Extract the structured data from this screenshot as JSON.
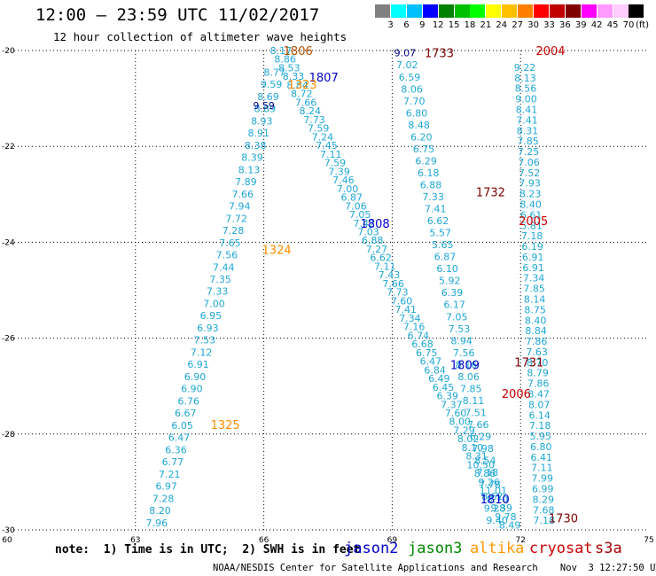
{
  "header": {
    "title": "12:00 – 23:59 UTC 11/02/2017",
    "subtitle": "12 hour collection of altimeter wave heights"
  },
  "colorbar": {
    "colors": [
      "#808080",
      "#00ffff",
      "#00bfff",
      "#0000ff",
      "#008000",
      "#00c000",
      "#00ff00",
      "#ffff00",
      "#ffc000",
      "#ff8000",
      "#ff0000",
      "#c00000",
      "#800000",
      "#ff00ff",
      "#ff99ff",
      "#ffccff",
      "#000000"
    ],
    "labels": [
      "3",
      "6",
      "9",
      "12",
      "15",
      "18",
      "21",
      "24",
      "27",
      "30",
      "33",
      "36",
      "39",
      "42",
      "45",
      "70"
    ],
    "unit": "(ft)"
  },
  "axes": {
    "x_ticks": [
      "60",
      "63",
      "66",
      "69",
      "72",
      "75"
    ],
    "y_ticks": [
      "-20",
      "-22",
      "-24",
      "-26",
      "-28",
      "-30"
    ]
  },
  "passes": [
    {
      "name": "jason2",
      "time": "1806",
      "color": "#b05000",
      "at": [
        66.8,
        -20.0
      ]
    },
    {
      "name": "jason2",
      "time": "1807",
      "color": "#0000cc",
      "at": [
        67.4,
        -20.55
      ]
    },
    {
      "name": "altika",
      "time": "1323",
      "color": "#ff8c00",
      "at": [
        66.9,
        -20.7
      ]
    },
    {
      "name": "altika",
      "time": "1324",
      "color": "#ff8c00",
      "at": [
        66.3,
        -24.15
      ]
    },
    {
      "name": "altika",
      "time": "1325",
      "color": "#ff8c00",
      "at": [
        65.1,
        -27.8
      ]
    },
    {
      "name": "jason2",
      "time": "1808",
      "color": "#0000cc",
      "at": [
        68.6,
        -23.6
      ]
    },
    {
      "name": "jason2",
      "time": "1809",
      "color": "#0000cc",
      "at": [
        70.7,
        -26.55
      ]
    },
    {
      "name": "jason2",
      "time": "1810",
      "color": "#0000cc",
      "at": [
        71.4,
        -29.35
      ]
    },
    {
      "name": "cryosat",
      "time": "1733",
      "color": "#800000",
      "at": [
        70.1,
        -20.05
      ]
    },
    {
      "name": "cryosat",
      "time": "1732",
      "color": "#800000",
      "at": [
        71.3,
        -22.95
      ]
    },
    {
      "name": "cryosat",
      "time": "1731",
      "color": "#800000",
      "at": [
        72.2,
        -26.5
      ]
    },
    {
      "name": "cryosat",
      "time": "1730",
      "color": "#800000",
      "at": [
        73.0,
        -29.75
      ]
    },
    {
      "name": "s3a",
      "time": "2004",
      "color": "#cc0000",
      "at": [
        72.7,
        -20.0
      ]
    },
    {
      "name": "s3a",
      "time": "2005",
      "color": "#cc0000",
      "at": [
        72.3,
        -23.55
      ]
    },
    {
      "name": "s3a",
      "time": "2006",
      "color": "#cc0000",
      "at": [
        71.9,
        -27.15
      ]
    }
  ],
  "tracks": [
    {
      "id": "altika_1324",
      "color": "#1ea7d6",
      "start": [
        66.25,
        -20.45
      ],
      "end": [
        63.5,
        -29.85
      ],
      "first_color": "#1ea7d6",
      "values": [
        "8.77",
        "9.59",
        "8.69",
        "8.89",
        "8.93",
        "8.91",
        "8.38",
        "8.39",
        "8.13",
        "7.89",
        "7.66",
        "7.94",
        "7.72",
        "7.28",
        "7.65",
        "7.56",
        "7.44",
        "7.35",
        "7.33",
        "7.00",
        "6.95",
        "6.93",
        "7.53",
        "7.12",
        "6.91",
        "6.90",
        "6.90",
        "6.76",
        "6.67",
        "6.05",
        "6.47",
        "6.36",
        "6.77",
        "7.21",
        "6.97",
        "7.28",
        "8.20",
        "7.96"
      ]
    },
    {
      "id": "jason2_1807",
      "color": "#1ea7d6",
      "start": [
        66.4,
        -20.0
      ],
      "end": [
        71.75,
        -29.9
      ],
      "values": [
        "8.17",
        "8.86",
        "8.53",
        "8.33",
        "8.84",
        "8.72",
        "7.66",
        "8.24",
        "7.73",
        "7.59",
        "7.24",
        "7.45",
        "7.11",
        "7.59",
        "7.39",
        "7.46",
        "7.00",
        "6.87",
        "7.06",
        "7.05",
        "7.42",
        "7.03",
        "6.88",
        "7.27",
        "6.62",
        "7.11",
        "7.43",
        "7.66",
        "7.73",
        "7.60",
        "7.41",
        "7.34",
        "7.16",
        "6.74",
        "6.68",
        "6.75",
        "6.47",
        "6.84",
        "6.49",
        "6.45",
        "6.39",
        "7.37",
        "7.60",
        "8.00",
        "7.29",
        "8.02",
        "8.10",
        "8.31",
        "10.50",
        "8.86",
        "9.26",
        "11.01",
        "8.70",
        "9.39",
        "9.78",
        "8.49"
      ]
    },
    {
      "id": "cryosat_1731",
      "color": "#1ea7d6",
      "start": [
        69.35,
        -20.3
      ],
      "end": [
        71.45,
        -29.8
      ],
      "values": [
        "7.02",
        "6.59",
        "8.06",
        "7.70",
        "6.80",
        "8.48",
        "6.20",
        "6.75",
        "6.29",
        "6.18",
        "6.88",
        "7.33",
        "7.41",
        "6.62",
        "5.57",
        "5.65",
        "6.87",
        "6.10",
        "5.92",
        "6.39",
        "6.17",
        "7.05",
        "7.53",
        "8.94",
        "7.56",
        "8.16",
        "8.06",
        "7.85",
        "8.11",
        "7.51",
        "7.66",
        "6.29",
        "7.98",
        "8.54",
        "7.18",
        "7.78",
        "8.62",
        "9.28",
        "9.40"
      ]
    },
    {
      "id": "s3a_2005",
      "color": "#1ea7d6",
      "start": [
        72.1,
        -20.35
      ],
      "end": [
        72.55,
        -29.8
      ],
      "values": [
        "9.22",
        "8.13",
        "8.56",
        "9.00",
        "8.41",
        "7.41",
        "8.31",
        "7.85",
        "7.25",
        "7.06",
        "7.52",
        "7.93",
        "8.23",
        "8.40",
        "6.61",
        "5.81",
        "7.18",
        "6.19",
        "6.91",
        "6.91",
        "7.34",
        "7.85",
        "8.14",
        "8.75",
        "8.40",
        "8.84",
        "7.86",
        "7.63",
        "8.70",
        "8.79",
        "7.86",
        "8.47",
        "8.07",
        "6.14",
        "7.18",
        "5.95",
        "6.80",
        "6.41",
        "7.11",
        "7.99",
        "6.99",
        "8.29",
        "7.68",
        "7.18"
      ]
    }
  ],
  "dark_values": [
    {
      "text": "9.07",
      "color": "#00008b",
      "at": [
        69.3,
        -20.05
      ]
    },
    {
      "text": "9.59",
      "color": "#00008b",
      "at": [
        66.0,
        -21.15
      ]
    }
  ],
  "note": "note:  1) Time is in UTC;  2) SWH is in feet",
  "legend": [
    {
      "text": "jason2",
      "color": "#0000cc"
    },
    {
      "text": "jason3",
      "color": "#008800"
    },
    {
      "text": "altika",
      "color": "#ff9900"
    },
    {
      "text": "cryosat",
      "color": "#cc0000"
    },
    {
      "text": "s3a",
      "color": "#aa0000"
    }
  ],
  "footer": "NOAA/NESDIS Center for Satellite Applications and Research    Nov  3 12:27:50 UTC 2017",
  "map_extent": {
    "lon": [
      60,
      75
    ],
    "lat": [
      -30,
      -20
    ]
  }
}
